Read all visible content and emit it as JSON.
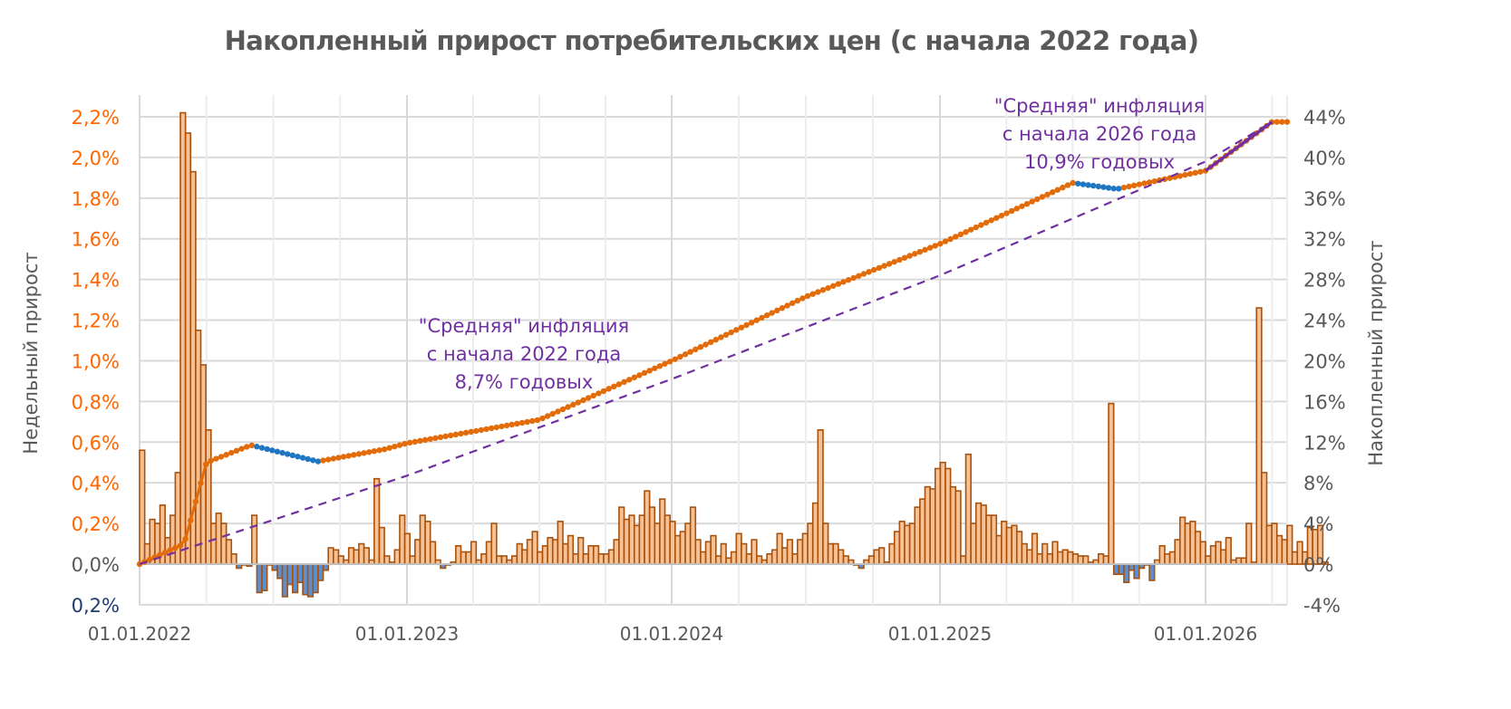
{
  "title": "Накопленный прирост потребительских цен (с начала 2022 года)",
  "colors": {
    "weekly_positive_fill": "#F8C193",
    "weekly_negative_fill": "#5B8FD0",
    "bar_stroke": "#A8520D",
    "cumulative_line": "#E36C0A",
    "cumulative_decline_markers": "#1F77C4",
    "avg_trend_dashed": "#7030A0",
    "avg_2026_solid": "#7030A0",
    "left_axis_labels": "#FF6600",
    "left_axis_negative_label": "#1F3D6E",
    "right_axis_labels": "#595959",
    "grid": "#D9D9D9",
    "annotation": "#7030A0"
  },
  "annotations": [
    {
      "lines": [
        "\"Средняя\" инфляция",
        "с начала 2022 года",
        "8,7% годовых"
      ]
    },
    {
      "lines": [
        "\"Средняя\" инфляция",
        "с начала 2026 года",
        "10,9% годовых"
      ]
    }
  ],
  "chart_data": {
    "type": "bar+line",
    "title": "Накопленный прирост потребительских цен (с начала 2022 года)",
    "xlabel": "",
    "ylabel_left": "Недельный прирост",
    "ylabel_right": "Накопленный прирост",
    "x_tick_labels": [
      "01.01.2022",
      "01.01.2023",
      "01.01.2024",
      "01.01.2025",
      "01.01.2026"
    ],
    "y_left_tick_labels": [
      "0,2%",
      "0,0%",
      "0,2%",
      "0,4%",
      "0,6%",
      "0,8%",
      "1,0%",
      "1,2%",
      "1,4%",
      "1,6%",
      "1,8%",
      "2,0%",
      "2,2%"
    ],
    "y_right_tick_labels": [
      "-4%",
      "0%",
      "4%",
      "8%",
      "12%",
      "16%",
      "20%",
      "24%",
      "28%",
      "32%",
      "36%",
      "40%",
      "44%"
    ],
    "y_left_lim": [
      -0.2,
      2.2
    ],
    "y_right_lim": [
      -4,
      44
    ],
    "grid": true,
    "legend": "none",
    "series": [
      {
        "name": "Недельный прирост",
        "axis": "left",
        "type": "bar",
        "unit": "%",
        "values": [
          0.56,
          0.1,
          0.22,
          0.2,
          0.29,
          0.13,
          0.24,
          0.45,
          2.22,
          2.12,
          1.93,
          1.15,
          0.98,
          0.66,
          0.2,
          0.25,
          0.2,
          0.12,
          0.05,
          -0.02,
          0.0,
          -0.01,
          0.24,
          -0.14,
          -0.13,
          0.0,
          -0.03,
          -0.07,
          -0.16,
          -0.1,
          -0.14,
          -0.09,
          -0.15,
          -0.16,
          -0.14,
          -0.08,
          -0.03,
          0.08,
          0.07,
          0.04,
          0.02,
          0.08,
          0.07,
          0.1,
          0.08,
          0.02,
          0.42,
          0.18,
          0.04,
          0.01,
          0.07,
          0.24,
          0.15,
          0.04,
          0.12,
          0.24,
          0.21,
          0.11,
          0.02,
          -0.02,
          0.0,
          0.01,
          0.09,
          0.06,
          0.06,
          0.11,
          0.02,
          0.05,
          0.11,
          0.2,
          0.04,
          0.04,
          0.02,
          0.04,
          0.1,
          0.07,
          0.12,
          0.16,
          0.06,
          0.09,
          0.13,
          0.12,
          0.21,
          0.1,
          0.14,
          0.05,
          0.13,
          0.05,
          0.09,
          0.09,
          0.05,
          0.05,
          0.07,
          0.12,
          0.28,
          0.22,
          0.24,
          0.19,
          0.24,
          0.36,
          0.28,
          0.2,
          0.32,
          0.24,
          0.21,
          0.14,
          0.16,
          0.2,
          0.28,
          0.12,
          0.06,
          0.11,
          0.14,
          0.04,
          0.1,
          0.03,
          0.06,
          0.15,
          0.1,
          0.05,
          0.12,
          0.04,
          0.02,
          0.05,
          0.07,
          0.15,
          0.08,
          0.12,
          0.05,
          0.12,
          0.15,
          0.2,
          0.3,
          0.66,
          0.2,
          0.1,
          0.1,
          0.07,
          0.04,
          0.02,
          0.0,
          -0.02,
          0.02,
          0.04,
          0.07,
          0.08,
          0.01,
          0.1,
          0.16,
          0.21,
          0.19,
          0.2,
          0.28,
          0.32,
          0.38,
          0.37,
          0.47,
          0.5,
          0.47,
          0.38,
          0.36,
          0.04,
          0.54,
          0.2,
          0.3,
          0.29,
          0.24,
          0.24,
          0.14,
          0.21,
          0.18,
          0.19,
          0.16,
          0.1,
          0.07,
          0.15,
          0.05,
          0.1,
          0.05,
          0.11,
          0.06,
          0.07,
          0.06,
          0.05,
          0.04,
          0.04,
          0.01,
          0.02,
          0.05,
          0.04,
          0.79,
          -0.05,
          -0.05,
          -0.09,
          -0.03,
          -0.07,
          -0.02,
          0.0,
          -0.08,
          0.02,
          0.09,
          0.05,
          0.06,
          0.12,
          0.23,
          0.2,
          0.21,
          0.16,
          0.11,
          0.04,
          0.09,
          0.11,
          0.07,
          0.13,
          0.02,
          0.03,
          0.03,
          0.2,
          0.01,
          1.26,
          0.45,
          0.19,
          0.2,
          0.14,
          0.12,
          0.19,
          0.06,
          0.11,
          0.06,
          0.18,
          0.17,
          0.19,
          0.01
        ]
      },
      {
        "name": "Накопленный прирост",
        "axis": "right",
        "type": "line",
        "unit": "%",
        "x": [
          "01.01.2022",
          "01.03.2022",
          "01.04.2022",
          "01.06.2022",
          "01.09.2022",
          "01.12.2022",
          "01.01.2023",
          "01.07.2023",
          "01.01.2024",
          "01.07.2024",
          "01.01.2025",
          "01.07.2025",
          "01.09.2025",
          "01.01.2026",
          "01.04.2026"
        ],
        "values": [
          0.0,
          2.0,
          10.0,
          11.7,
          10.1,
          11.3,
          11.9,
          14.2,
          20.0,
          26.3,
          31.5,
          37.5,
          36.9,
          38.7,
          43.5
        ]
      },
      {
        "name": "Средняя инфляция с начала 2022 года (8,7% годовых)",
        "axis": "right",
        "type": "line",
        "style": "dashed",
        "x": [
          "01.01.2022",
          "01.01.2023",
          "01.01.2024",
          "01.01.2025",
          "01.01.2026",
          "01.04.2026"
        ],
        "values": [
          0.0,
          8.7,
          18.2,
          28.4,
          39.6,
          43.5
        ]
      },
      {
        "name": "Средняя инфляция с начала 2026 года (10,9% годовых)",
        "axis": "right",
        "type": "line",
        "style": "solid",
        "x": [
          "01.01.2026",
          "01.04.2026"
        ],
        "values": [
          38.7,
          43.5
        ]
      }
    ]
  }
}
